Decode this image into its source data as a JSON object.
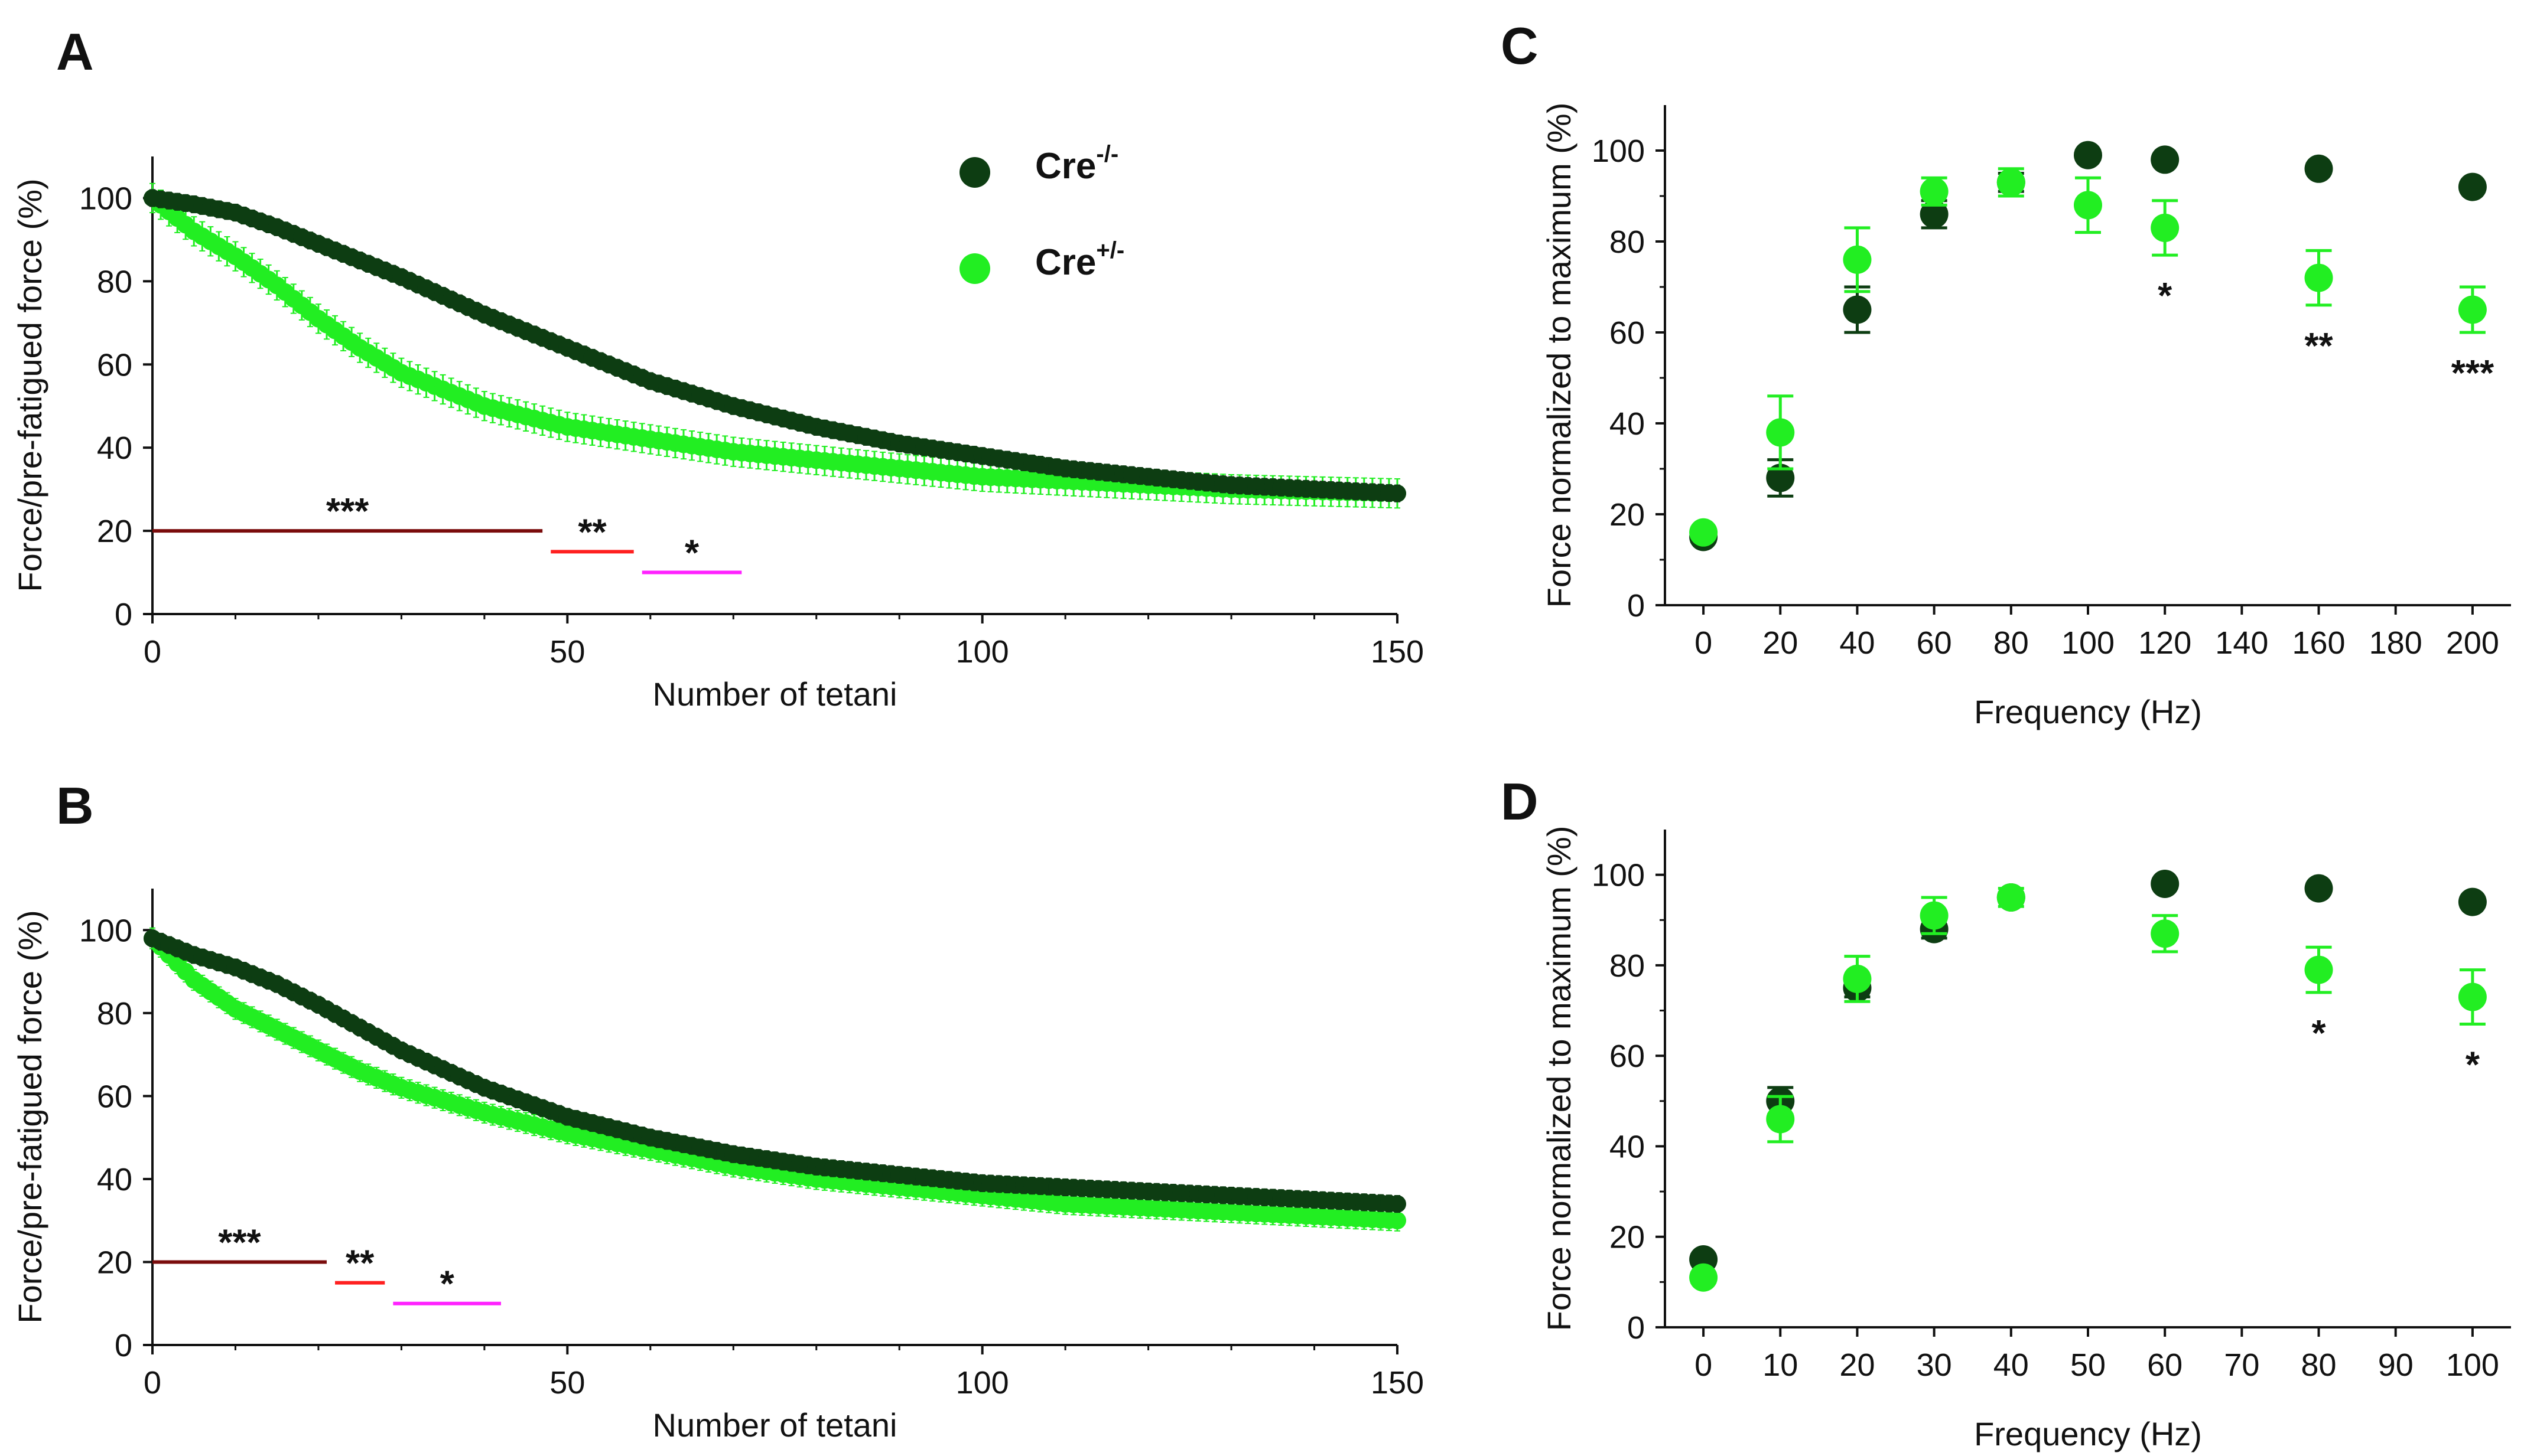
{
  "colors": {
    "dark": "#0d3d12",
    "light": "#22ee22",
    "sig3": "#7a0c0c",
    "sig2": "#ff2020",
    "sig1": "#ff22ff",
    "axis": "#111111"
  },
  "legend": {
    "items": [
      {
        "base": "Cre",
        "sup": "-/-",
        "color": "#0d3d12"
      },
      {
        "base": "Cre",
        "sup": "+/-",
        "color": "#22ee22"
      }
    ]
  },
  "chart_data": [
    {
      "panel": "A",
      "type": "line",
      "xlabel": "Number of tetani",
      "ylabel": "Force/pre-fatigued force (%)",
      "xlim": [
        0,
        150
      ],
      "ylim": [
        0,
        110
      ],
      "xticks": [
        0,
        50,
        100,
        150
      ],
      "yticks": [
        0,
        20,
        40,
        60,
        80,
        100
      ],
      "series": [
        {
          "name": "Cre-/-",
          "color": "#0d3d12",
          "x": [
            0,
            5,
            10,
            15,
            20,
            30,
            40,
            50,
            60,
            70,
            80,
            90,
            100,
            110,
            120,
            130,
            140,
            150
          ],
          "values": [
            100,
            98.5,
            96.5,
            93,
            89,
            81,
            72,
            64,
            56,
            50,
            45,
            41,
            38,
            35,
            33,
            31,
            30,
            29
          ],
          "err": 2
        },
        {
          "name": "Cre+/-",
          "color": "#22ee22",
          "x": [
            0,
            5,
            10,
            15,
            20,
            25,
            30,
            40,
            50,
            60,
            70,
            80,
            90,
            100,
            110,
            120,
            130,
            140,
            150
          ],
          "values": [
            100,
            92,
            86,
            79,
            71,
            64,
            58,
            50,
            45,
            42,
            39,
            37,
            35,
            33,
            32,
            31,
            30,
            29.5,
            29
          ],
          "err": 3.5
        }
      ],
      "sig_bars": [
        {
          "label": "***",
          "x1": 0,
          "x2": 47,
          "y": 20,
          "color": "#7a0c0c"
        },
        {
          "label": "**",
          "x1": 48,
          "x2": 58,
          "y": 15,
          "color": "#ff2020"
        },
        {
          "label": "*",
          "x1": 59,
          "x2": 71,
          "y": 10,
          "color": "#ff22ff"
        }
      ]
    },
    {
      "panel": "B",
      "type": "line",
      "xlabel": "Number of tetani",
      "ylabel": "Force/pre-fatigued force (%)",
      "xlim": [
        0,
        150
      ],
      "ylim": [
        0,
        110
      ],
      "xticks": [
        0,
        50,
        100,
        150
      ],
      "yticks": [
        0,
        20,
        40,
        60,
        80,
        100
      ],
      "series": [
        {
          "name": "Cre-/-",
          "color": "#0d3d12",
          "x": [
            0,
            5,
            10,
            15,
            20,
            30,
            40,
            50,
            60,
            70,
            80,
            90,
            100,
            110,
            120,
            130,
            140,
            150
          ],
          "values": [
            98,
            94,
            91,
            87,
            82,
            71,
            62,
            55,
            50,
            46,
            43,
            41,
            39,
            38,
            37,
            36,
            35,
            34
          ],
          "err": 2
        },
        {
          "name": "Cre+/-",
          "color": "#22ee22",
          "x": [
            0,
            5,
            10,
            15,
            20,
            25,
            30,
            40,
            50,
            60,
            70,
            80,
            90,
            100,
            110,
            120,
            130,
            140,
            150
          ],
          "values": [
            98,
            88,
            81,
            76,
            71,
            66,
            62,
            56,
            51,
            47,
            43,
            40,
            38,
            36,
            34,
            33,
            32,
            31,
            30
          ],
          "err": 2.5
        }
      ],
      "sig_bars": [
        {
          "label": "***",
          "x1": 0,
          "x2": 21,
          "y": 20,
          "color": "#7a0c0c"
        },
        {
          "label": "**",
          "x1": 22,
          "x2": 28,
          "y": 15,
          "color": "#ff2020"
        },
        {
          "label": "*",
          "x1": 29,
          "x2": 42,
          "y": 10,
          "color": "#ff22ff"
        }
      ]
    },
    {
      "panel": "C",
      "type": "scatter",
      "xlabel": "Frequency (Hz)",
      "ylabel": "Force normalized to maximum (%)",
      "xlim": [
        -10,
        210
      ],
      "ylim": [
        0,
        110
      ],
      "xticks": [
        0,
        20,
        40,
        60,
        80,
        100,
        120,
        140,
        160,
        180,
        200
      ],
      "yticks": [
        0,
        20,
        40,
        60,
        80,
        100
      ],
      "series": [
        {
          "name": "Cre-/-",
          "color": "#0d3d12",
          "x": [
            0,
            20,
            40,
            60,
            80,
            100,
            120,
            160,
            200
          ],
          "values": [
            15,
            28,
            65,
            86,
            93,
            99,
            98,
            96,
            92
          ],
          "err": [
            1,
            4,
            5,
            3,
            2,
            1,
            1,
            1,
            1
          ]
        },
        {
          "name": "Cre+/-",
          "color": "#22ee22",
          "x": [
            0,
            20,
            40,
            60,
            80,
            100,
            120,
            160,
            200
          ],
          "values": [
            16,
            38,
            76,
            91,
            93,
            88,
            83,
            72,
            65
          ],
          "err": [
            1,
            8,
            7,
            3,
            3,
            6,
            6,
            6,
            5
          ]
        }
      ],
      "annotations": [
        {
          "x": 120,
          "label": "*"
        },
        {
          "x": 160,
          "label": "**"
        },
        {
          "x": 200,
          "label": "***"
        }
      ]
    },
    {
      "panel": "D",
      "type": "scatter",
      "xlabel": "Frequency (Hz)",
      "ylabel": "Force normalized to maximum (%)",
      "xlim": [
        -5,
        105
      ],
      "ylim": [
        0,
        110
      ],
      "xticks": [
        0,
        10,
        20,
        30,
        40,
        50,
        60,
        70,
        80,
        90,
        100
      ],
      "yticks": [
        0,
        20,
        40,
        60,
        80,
        100
      ],
      "series": [
        {
          "name": "Cre-/-",
          "color": "#0d3d12",
          "x": [
            0,
            10,
            20,
            30,
            40,
            60,
            80,
            100
          ],
          "values": [
            15,
            50,
            75,
            88,
            95,
            98,
            97,
            94
          ],
          "err": [
            1,
            3,
            2,
            2,
            1,
            1,
            1,
            1
          ]
        },
        {
          "name": "Cre+/-",
          "color": "#22ee22",
          "x": [
            0,
            10,
            20,
            30,
            40,
            60,
            80,
            100
          ],
          "values": [
            11,
            46,
            77,
            91,
            95,
            87,
            79,
            73
          ],
          "err": [
            1,
            5,
            5,
            4,
            2,
            4,
            5,
            6
          ]
        }
      ],
      "annotations": [
        {
          "x": 80,
          "label": "*"
        },
        {
          "x": 100,
          "label": "*"
        }
      ]
    }
  ]
}
